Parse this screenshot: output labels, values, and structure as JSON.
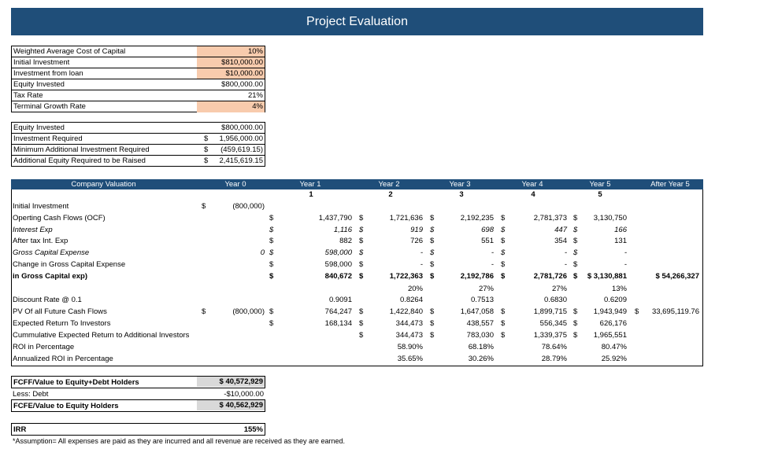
{
  "title": "Project Evaluation",
  "assumptions": [
    {
      "label": "Weighted Average Cost of Capital",
      "value": "10%",
      "peach": true
    },
    {
      "label": "Initial Investment",
      "value": "$810,000.00",
      "peach": true
    },
    {
      "label": "Investment from loan",
      "value": "$10,000.00",
      "peach": true
    },
    {
      "label": "Equity Invested",
      "value": "$800,000.00",
      "peach": false
    },
    {
      "label": "Tax Rate",
      "value": "21%",
      "peach": false
    },
    {
      "label": "Terminal Growth Rate",
      "value": "4%",
      "peach": true
    }
  ],
  "equity_box": [
    {
      "label": "Equity Invested",
      "cur": "",
      "value": "$800,000.00"
    },
    {
      "label": "Investment Required",
      "cur": "$",
      "value": "1,956,000.00"
    },
    {
      "label": "Minimum Additional Investment Required",
      "cur": "$",
      "value": "(459,619.15)"
    },
    {
      "label": "Additional Equity Required to be Raised",
      "cur": "$",
      "value": "2,415,619.15"
    }
  ],
  "valuation": {
    "header": [
      "Company Valuation",
      "Year 0",
      "Year 1",
      "Year 2",
      "Year 3",
      "Year 4",
      "Year 5",
      "After Year 5"
    ],
    "year_numbers": [
      "1",
      "2",
      "3",
      "4",
      "5"
    ],
    "rows": [
      {
        "label": "Initial Investment",
        "y0c": "$",
        "y0": "(800,000)",
        "s0": "",
        "v": [
          "",
          "",
          "",
          "",
          ""
        ],
        "vc": [
          "",
          "",
          "",
          "",
          ""
        ],
        "after": "",
        "style": ""
      },
      {
        "label": "Operting Cash Flows (OCF)",
        "y0c": "",
        "y0": "",
        "s0": "$",
        "v": [
          "1,437,790",
          "1,721,636",
          "2,192,235",
          "2,781,373",
          "3,130,750"
        ],
        "vc": [
          "$",
          "$",
          "$",
          "$",
          ""
        ],
        "after": "",
        "style": ""
      },
      {
        "label": "Interest Exp",
        "y0c": "",
        "y0": "",
        "s0": "$",
        "v": [
          "1,116",
          "919",
          "698",
          "447",
          "166"
        ],
        "vc": [
          "$",
          "$",
          "$",
          "$",
          ""
        ],
        "after": "",
        "style": "it"
      },
      {
        "label": "After tax Int. Exp",
        "y0c": "",
        "y0": "",
        "s0": "$",
        "v": [
          "882",
          "726",
          "551",
          "354",
          "131"
        ],
        "vc": [
          "$",
          "$",
          "$",
          "$",
          ""
        ],
        "after": "",
        "style": ""
      },
      {
        "label": "Gross Capital Expense",
        "y0c": "",
        "y0": "0",
        "s0": "$",
        "v": [
          "598,000",
          "-",
          "-",
          "-",
          "-"
        ],
        "vc": [
          "$",
          "$",
          "$",
          "$",
          ""
        ],
        "after": "",
        "style": "it"
      },
      {
        "label": "Change in Gross Capital Expense",
        "y0c": "",
        "y0": "",
        "s0": "$",
        "v": [
          "598,000",
          "-",
          "-",
          "-",
          "-"
        ],
        "vc": [
          "$",
          "$",
          "$",
          "$",
          ""
        ],
        "after": "",
        "style": ""
      },
      {
        "label": "in Gross Capital exp)",
        "y0c": "",
        "y0": "",
        "s0": "$",
        "v": [
          "840,672",
          "1,722,363",
          "2,192,786",
          "2,781,726",
          "$ 3,130,881"
        ],
        "vc": [
          "$",
          "$",
          "$",
          "$",
          ""
        ],
        "after": "$ 54,266,327",
        "style": "b"
      },
      {
        "label": "",
        "y0c": "",
        "y0": "",
        "s0": "",
        "v": [
          "",
          "20%",
          "27%",
          "27%",
          "13%"
        ],
        "vc": [
          "",
          "",
          "",
          "",
          ""
        ],
        "after": "",
        "style": ""
      },
      {
        "label": "Discount Rate @ 0.1",
        "y0c": "",
        "y0": "",
        "s0": "",
        "v": [
          "0.9091",
          "0.8264",
          "0.7513",
          "0.6830",
          "0.6209"
        ],
        "vc": [
          "",
          "",
          "",
          "",
          ""
        ],
        "after": "",
        "style": ""
      },
      {
        "label": "PV Of all Future Cash Flows",
        "y0c": "$",
        "y0": "(800,000)",
        "s0": "$",
        "v": [
          "764,247",
          "1,422,840",
          "1,647,058",
          "1,899,715",
          "1,943,949"
        ],
        "vc": [
          "$",
          "$",
          "$",
          "$",
          "$"
        ],
        "after": "33,695,119.76",
        "style": ""
      },
      {
        "label": "Expected Return To Investors",
        "y0c": "",
        "y0": "",
        "s0": "$",
        "v": [
          "168,134",
          "344,473",
          "438,557",
          "556,345",
          "626,176"
        ],
        "vc": [
          "$",
          "$",
          "$",
          "$",
          ""
        ],
        "after": "",
        "style": ""
      },
      {
        "label": "Cummulative Expected Return to Additional Investors",
        "y0c": "",
        "y0": "",
        "s0": "",
        "v": [
          "",
          "344,473",
          "783,030",
          "1,339,375",
          "1,965,551"
        ],
        "vc": [
          "$",
          "$",
          "$",
          "$",
          ""
        ],
        "after": "",
        "style": ""
      },
      {
        "label": "ROI in Percentage",
        "y0c": "",
        "y0": "",
        "s0": "",
        "v": [
          "58.90%",
          "68.18%",
          "78.64%",
          "80.47%",
          ""
        ],
        "vc": [
          "",
          "",
          "",
          "",
          ""
        ],
        "after": "",
        "style": "roi"
      },
      {
        "label": "Annualized ROI in Percentage",
        "y0c": "",
        "y0": "",
        "s0": "",
        "v": [
          "35.65%",
          "30.26%",
          "28.79%",
          "25.92%",
          ""
        ],
        "vc": [
          "",
          "",
          "",
          "",
          ""
        ],
        "after": "",
        "style": "roi"
      }
    ]
  },
  "fcf": {
    "fcff_label": "FCFF/Value to Equity+Debt Holders",
    "fcff_value": "$ 40,572,929",
    "debt_label": "Less: Debt",
    "debt_value": "-$10,000.00",
    "fcfe_label": "FCFE/Value to Equity Holders",
    "fcfe_value": "$ 40,562,929"
  },
  "irr": {
    "label": "IRR",
    "value": "155%"
  },
  "footnote": "*Assumption= All expenses are paid as they are incurred and all revenue are received as they are earned."
}
